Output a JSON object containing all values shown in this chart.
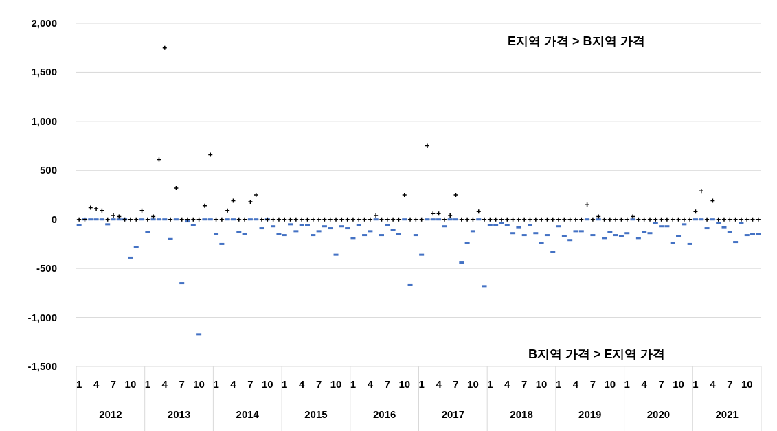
{
  "chart_data": {
    "type": "scatter",
    "categories": [
      "1",
      null,
      null,
      "4",
      null,
      null,
      "7",
      null,
      null,
      "10",
      null,
      null,
      "1",
      null,
      null,
      "4",
      null,
      null,
      "7",
      null,
      null,
      "10",
      null,
      null,
      "1",
      null,
      null,
      "4",
      null,
      null,
      "7",
      null,
      null,
      "10",
      null,
      null,
      "1",
      null,
      null,
      "4",
      null,
      null,
      "7",
      null,
      null,
      "10",
      null,
      null,
      "1",
      null,
      null,
      "4",
      null,
      null,
      "7",
      null,
      null,
      "10",
      null,
      null,
      "1",
      null,
      null,
      "4",
      null,
      null,
      "7",
      null,
      null,
      "10",
      null,
      null,
      "1",
      null,
      null,
      "4",
      null,
      null,
      "7",
      null,
      null,
      "10",
      null,
      null,
      "1",
      null,
      null,
      "4",
      null,
      null,
      "7",
      null,
      null,
      "10",
      null,
      null,
      "1",
      null,
      null,
      "4",
      null,
      null,
      "7",
      null,
      null,
      "10",
      null,
      null,
      "1",
      null,
      null,
      "4",
      null,
      null,
      "7",
      null,
      null,
      "10",
      null,
      null
    ],
    "series": [
      {
        "color": "#000000",
        "marker": "cross",
        "values": [
          0,
          0,
          120,
          110,
          90,
          0,
          40,
          30,
          0,
          0,
          0,
          90,
          0,
          30,
          610,
          1750,
          0,
          320,
          0,
          0,
          0,
          0,
          140,
          660,
          0,
          0,
          90,
          190,
          0,
          0,
          180,
          250,
          0,
          0,
          0,
          0,
          0,
          0,
          0,
          0,
          0,
          0,
          0,
          0,
          0,
          0,
          0,
          0,
          0,
          0,
          0,
          0,
          40,
          0,
          0,
          0,
          0,
          250,
          0,
          0,
          0,
          750,
          60,
          60,
          0,
          40,
          250,
          0,
          0,
          0,
          80,
          0,
          0,
          0,
          0,
          0,
          0,
          0,
          0,
          0,
          0,
          0,
          0,
          0,
          0,
          0,
          0,
          0,
          0,
          150,
          0,
          30,
          0,
          0,
          0,
          0,
          0,
          30,
          0,
          0,
          0,
          0,
          0,
          0,
          0,
          0,
          0,
          0,
          80,
          290,
          0,
          190,
          0,
          0,
          0,
          0,
          0,
          0,
          0,
          0
        ]
      },
      {
        "color": "#4472c4",
        "marker": "square",
        "values": [
          -60,
          0,
          0,
          0,
          0,
          -50,
          0,
          0,
          0,
          -390,
          -280,
          0,
          -130,
          0,
          0,
          0,
          -200,
          0,
          -650,
          -20,
          -60,
          -1170,
          0,
          0,
          -150,
          -250,
          0,
          0,
          -130,
          -150,
          0,
          0,
          -90,
          0,
          -70,
          -150,
          -160,
          -50,
          -120,
          -60,
          -60,
          -160,
          -120,
          -70,
          -90,
          -360,
          -70,
          -90,
          -190,
          -60,
          -160,
          -120,
          0,
          -160,
          -60,
          -110,
          -150,
          0,
          -670,
          -160,
          -360,
          0,
          0,
          0,
          -70,
          0,
          0,
          -440,
          -240,
          -120,
          0,
          -680,
          -60,
          -60,
          -40,
          -60,
          -140,
          -80,
          -160,
          -60,
          -140,
          -240,
          -160,
          -330,
          -70,
          -170,
          -210,
          -120,
          -120,
          0,
          -160,
          0,
          -190,
          -130,
          -160,
          -170,
          -140,
          0,
          -190,
          -130,
          -140,
          -40,
          -70,
          -70,
          -240,
          -170,
          -50,
          -250,
          0,
          0,
          -90,
          0,
          -40,
          -80,
          -130,
          -230,
          -40,
          -160,
          -150,
          -150
        ]
      }
    ],
    "ylim": [
      -1500,
      2000
    ],
    "yticks": [
      {
        "value": -1500,
        "label": "-1,500"
      },
      {
        "value": -1000,
        "label": "-1,000"
      },
      -500,
      0,
      500,
      {
        "value": 1000,
        "label": "1,000"
      },
      {
        "value": 1500,
        "label": "1,500"
      },
      {
        "value": 2000,
        "label": "2,000"
      }
    ],
    "grid": "y",
    "annotations": [
      "E지역 가격 > B지역 가격",
      "B지역 가격 > E지역 가격",
      "2012",
      "2013",
      "2014",
      "2015",
      "2016",
      "2017",
      "2018",
      "2019",
      "2020",
      "2021"
    ]
  }
}
